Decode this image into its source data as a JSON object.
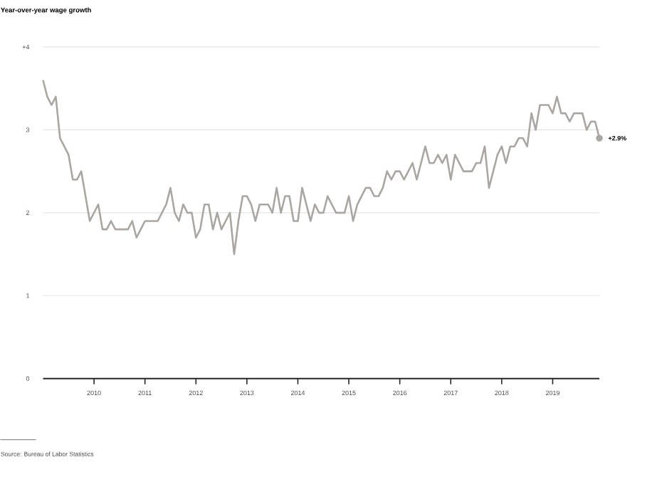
{
  "chart_data": {
    "type": "line",
    "ylabel": "Year-over-year wage growth",
    "x": [
      "2009-01",
      "2009-02",
      "2009-03",
      "2009-04",
      "2009-05",
      "2009-06",
      "2009-07",
      "2009-08",
      "2009-09",
      "2009-10",
      "2009-11",
      "2009-12",
      "2010-01",
      "2010-02",
      "2010-03",
      "2010-04",
      "2010-05",
      "2010-06",
      "2010-07",
      "2010-08",
      "2010-09",
      "2010-10",
      "2010-11",
      "2010-12",
      "2011-01",
      "2011-02",
      "2011-03",
      "2011-04",
      "2011-05",
      "2011-06",
      "2011-07",
      "2011-08",
      "2011-09",
      "2011-10",
      "2011-11",
      "2011-12",
      "2012-01",
      "2012-02",
      "2012-03",
      "2012-04",
      "2012-05",
      "2012-06",
      "2012-07",
      "2012-08",
      "2012-09",
      "2012-10",
      "2012-11",
      "2012-12",
      "2013-01",
      "2013-02",
      "2013-03",
      "2013-04",
      "2013-05",
      "2013-06",
      "2013-07",
      "2013-08",
      "2013-09",
      "2013-10",
      "2013-11",
      "2013-12",
      "2014-01",
      "2014-02",
      "2014-03",
      "2014-04",
      "2014-05",
      "2014-06",
      "2014-07",
      "2014-08",
      "2014-09",
      "2014-10",
      "2014-11",
      "2014-12",
      "2015-01",
      "2015-02",
      "2015-03",
      "2015-04",
      "2015-05",
      "2015-06",
      "2015-07",
      "2015-08",
      "2015-09",
      "2015-10",
      "2015-11",
      "2015-12",
      "2016-01",
      "2016-02",
      "2016-03",
      "2016-04",
      "2016-05",
      "2016-06",
      "2016-07",
      "2016-08",
      "2016-09",
      "2016-10",
      "2016-11",
      "2016-12",
      "2017-01",
      "2017-02",
      "2017-03",
      "2017-04",
      "2017-05",
      "2017-06",
      "2017-07",
      "2017-08",
      "2017-09",
      "2017-10",
      "2017-11",
      "2017-12",
      "2018-01",
      "2018-02",
      "2018-03",
      "2018-04",
      "2018-05",
      "2018-06",
      "2018-07",
      "2018-08",
      "2018-09",
      "2018-10",
      "2018-11",
      "2018-12",
      "2019-01",
      "2019-02",
      "2019-03",
      "2019-04",
      "2019-05",
      "2019-06",
      "2019-07",
      "2019-08",
      "2019-09",
      "2019-10",
      "2019-11",
      "2019-12"
    ],
    "series": [
      {
        "color": "#aaa6a2",
        "values": [
          3.6,
          3.4,
          3.3,
          3.4,
          2.9,
          2.8,
          2.7,
          2.4,
          2.4,
          2.5,
          2.2,
          1.9,
          2.0,
          2.1,
          1.8,
          1.8,
          1.9,
          1.8,
          1.8,
          1.8,
          1.8,
          1.9,
          1.7,
          1.8,
          1.9,
          1.9,
          1.9,
          1.9,
          2.0,
          2.1,
          2.3,
          2.0,
          1.9,
          2.1,
          2.0,
          2.0,
          1.7,
          1.8,
          2.1,
          2.1,
          1.8,
          2.0,
          1.8,
          1.9,
          2.0,
          1.5,
          1.9,
          2.2,
          2.2,
          2.1,
          1.9,
          2.1,
          2.1,
          2.1,
          2.0,
          2.3,
          2.0,
          2.2,
          2.2,
          1.9,
          1.9,
          2.3,
          2.1,
          1.9,
          2.1,
          2.0,
          2.0,
          2.2,
          2.1,
          2.0,
          2.0,
          2.0,
          2.2,
          1.9,
          2.1,
          2.2,
          2.3,
          2.3,
          2.2,
          2.2,
          2.3,
          2.5,
          2.4,
          2.5,
          2.5,
          2.4,
          2.5,
          2.6,
          2.4,
          2.6,
          2.8,
          2.6,
          2.6,
          2.7,
          2.6,
          2.7,
          2.4,
          2.7,
          2.6,
          2.5,
          2.5,
          2.5,
          2.6,
          2.6,
          2.8,
          2.3,
          2.5,
          2.7,
          2.8,
          2.6,
          2.8,
          2.8,
          2.9,
          2.9,
          2.8,
          3.2,
          3.0,
          3.3,
          3.3,
          3.3,
          3.2,
          3.4,
          3.2,
          3.2,
          3.1,
          3.2,
          3.2,
          3.2,
          3.0,
          3.1,
          3.1,
          2.9
        ]
      }
    ],
    "xlim": [
      "2009-01",
      "2019-12"
    ],
    "xticks": [
      "2010",
      "2011",
      "2012",
      "2013",
      "2014",
      "2015",
      "2016",
      "2017",
      "2018",
      "2019"
    ],
    "ylim": [
      0,
      4
    ],
    "yticks": [
      0,
      1,
      2,
      3,
      {
        "value": 4,
        "label": "+4"
      }
    ],
    "grid": "y",
    "marker": "none",
    "line_style": "solid",
    "annotations": [
      {
        "text": "+2.9%",
        "x": "2019-12",
        "y": 2.9
      },
      "Source: Bureau of Labor Statistics"
    ]
  }
}
